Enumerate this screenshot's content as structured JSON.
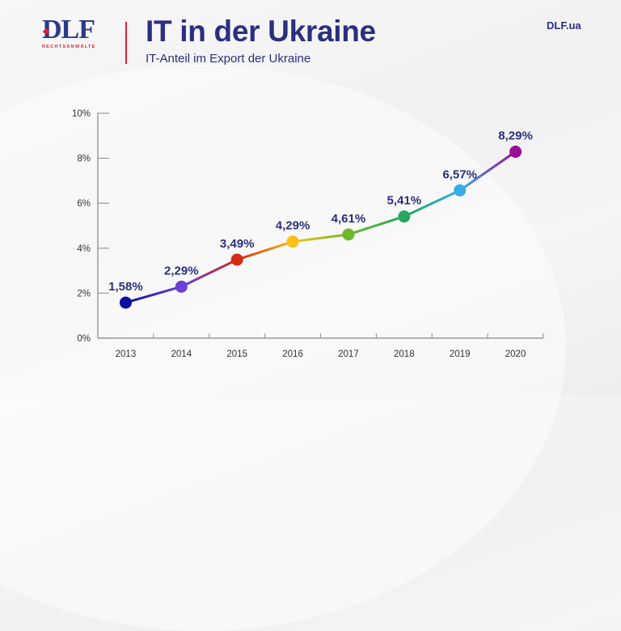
{
  "header": {
    "logo_text": "DLF",
    "logo_subtext": "RECHTSANWÄLTE",
    "title": "IT in der Ukraine",
    "subtitle": "IT-Anteil im Export der Ukraine",
    "site": "DLF.ua"
  },
  "colors": {
    "brand_navy": "#2b2f7e",
    "brand_red": "#d62633",
    "axis": "#9a9a9a"
  },
  "chart_data": {
    "type": "line",
    "title": "IT-Anteil im Export der Ukraine",
    "xlabel": "",
    "ylabel": "",
    "categories": [
      "2013",
      "2014",
      "2015",
      "2016",
      "2017",
      "2018",
      "2019",
      "2020"
    ],
    "series": [
      {
        "name": "IT-Anteil im Export",
        "values": [
          1.58,
          2.29,
          3.49,
          4.29,
          4.61,
          5.41,
          6.57,
          8.29
        ],
        "labels": [
          "1,58%",
          "2,29%",
          "3,49%",
          "4,29%",
          "4,61%",
          "5,41%",
          "6,57%",
          "8,29%"
        ],
        "point_colors": [
          "#0a0fa0",
          "#6a3fd6",
          "#d52a14",
          "#fbbf16",
          "#6db82a",
          "#27a85e",
          "#35ade8",
          "#9a0e96"
        ]
      }
    ],
    "ylim": [
      0,
      10
    ],
    "yticks": [
      0,
      2,
      4,
      6,
      8,
      10
    ],
    "ytick_labels": [
      "0%",
      "2%",
      "4%",
      "6%",
      "8%",
      "10%"
    ],
    "grid": false,
    "legend": "none"
  }
}
